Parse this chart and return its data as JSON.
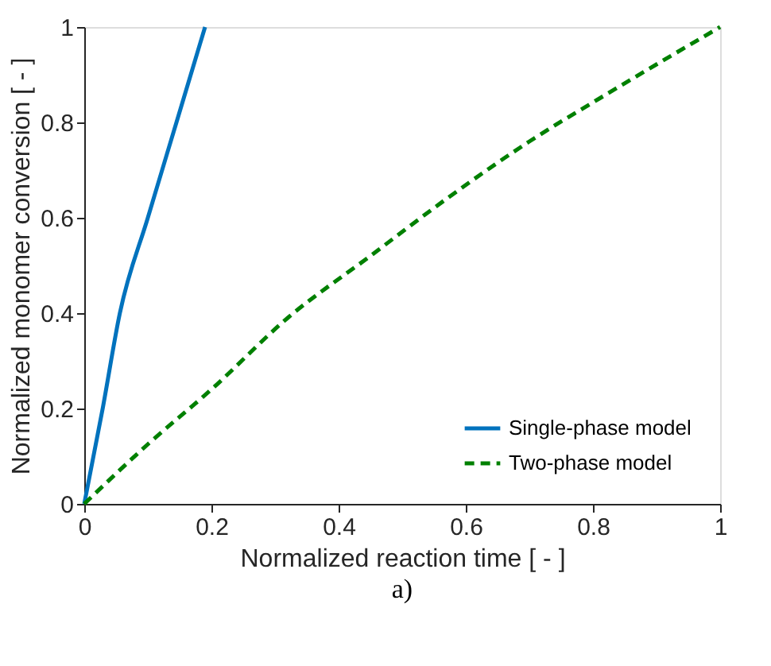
{
  "chart_data": {
    "type": "line",
    "xlabel": "Normalized reaction time [ - ]",
    "ylabel": "Normalized monomer conversion [ - ]",
    "annotations": [
      "a)"
    ],
    "xlim": [
      0,
      1
    ],
    "ylim": [
      0,
      1
    ],
    "xticks": [
      0,
      0.2,
      0.4,
      0.6,
      0.8,
      1
    ],
    "yticks": [
      0,
      0.2,
      0.4,
      0.6,
      0.8,
      1
    ],
    "grid": false,
    "legend": "bottom right",
    "marker": "none",
    "series": [
      {
        "name": "Single-phase model",
        "color": "#0072bd",
        "line_style": "solid",
        "x": [
          0,
          0.029,
          0.056,
          0.1,
          0.145,
          0.19
        ],
        "values": [
          0,
          0.2,
          0.4,
          0.6,
          0.8,
          1
        ]
      },
      {
        "name": "Two-phase model",
        "color": "#008000",
        "line_style": "dashed",
        "x": [
          0,
          0.1,
          0.2,
          0.32,
          0.45,
          0.57,
          0.7,
          0.81,
          1
        ],
        "values": [
          0,
          0.125,
          0.24,
          0.39,
          0.52,
          0.64,
          0.76,
          0.85,
          1
        ]
      }
    ]
  }
}
